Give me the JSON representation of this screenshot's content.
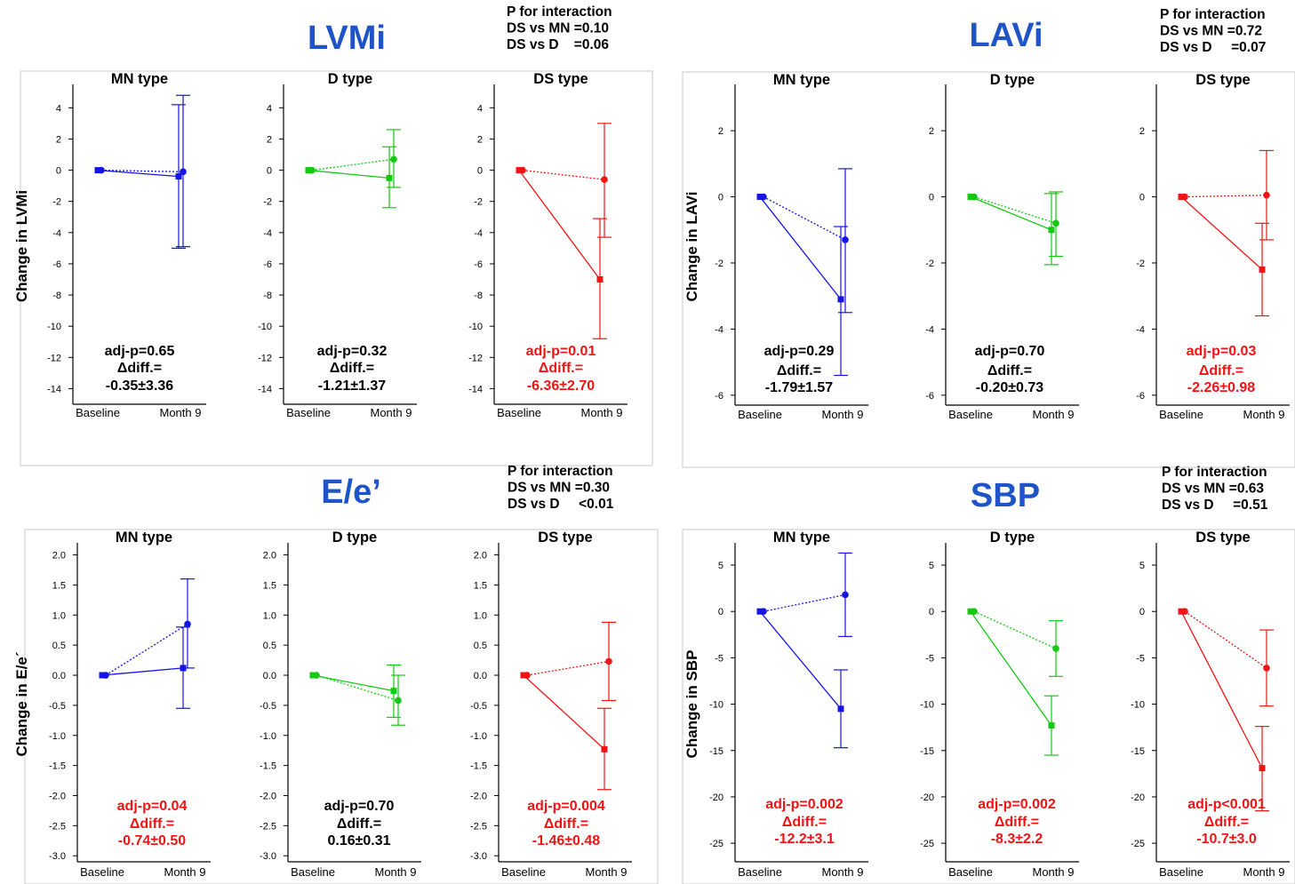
{
  "colors": {
    "MN": "#1414e6",
    "D": "#14c814",
    "DS": "#f01414",
    "title": "#1f54c8",
    "text": "#000000",
    "sig": "#f01414"
  },
  "chart_data": [
    {
      "type": "line",
      "title": "LVMi",
      "ylabel": "Change in LVMi",
      "interaction": {
        "heading": "P for interaction",
        "line1": "DS vs MN =0.10",
        "line2": "DS vs D    =0.06"
      },
      "categories": [
        "Baseline",
        "Month 9"
      ],
      "ylim": [
        -15,
        5.5
      ],
      "yticks": [
        4,
        2,
        0,
        -2,
        -4,
        -6,
        -8,
        -10,
        -12,
        -14
      ],
      "yticklabels": [
        "4",
        "2",
        "0",
        "-2",
        "-4",
        "-6",
        "-8",
        "-10",
        "-12",
        "-14"
      ],
      "panels": [
        {
          "name": "MN type",
          "color": "#1414e6",
          "solid_end": -0.4,
          "solid_err": [
            -5.0,
            4.2
          ],
          "dotted_end": -0.1,
          "dotted_err": [
            -4.9,
            4.8
          ],
          "stats": {
            "p": "adj-p=0.65",
            "diff_label": "Δdiff.=",
            "diff": "-0.35±3.36"
          },
          "significant": false
        },
        {
          "name": "D type",
          "color": "#14c814",
          "solid_end": -0.5,
          "solid_err": [
            -2.4,
            1.5
          ],
          "dotted_end": 0.7,
          "dotted_err": [
            -1.1,
            2.6
          ],
          "stats": {
            "p": "adj-p=0.32",
            "diff_label": "Δdiff.=",
            "diff": "-1.21±1.37"
          },
          "significant": false
        },
        {
          "name": "DS type",
          "color": "#f01414",
          "solid_end": -7.0,
          "solid_err": [
            -10.8,
            -3.1
          ],
          "dotted_end": -0.6,
          "dotted_err": [
            -4.3,
            3.0
          ],
          "stats": {
            "p": "adj-p=0.01",
            "diff_label": "Δdiff.=",
            "diff": "-6.36±2.70"
          },
          "significant": true
        }
      ]
    },
    {
      "type": "line",
      "title": "LAVi",
      "ylabel": "Change in LAVi",
      "interaction": {
        "heading": "P for interaction",
        "line1": "DS vs MN =0.72",
        "line2": "DS vs D     =0.07"
      },
      "categories": [
        "Baseline",
        "Month 9"
      ],
      "ylim": [
        -6.3,
        3.4
      ],
      "yticks": [
        2,
        0,
        -2,
        -4,
        -6
      ],
      "yticklabels": [
        "2",
        "0",
        "-2",
        "-4",
        "-6"
      ],
      "panels": [
        {
          "name": "MN type",
          "color": "#1414e6",
          "solid_end": -3.1,
          "solid_err": [
            -5.4,
            -0.9
          ],
          "dotted_end": -1.3,
          "dotted_err": [
            -3.5,
            0.85
          ],
          "stats": {
            "p": "adj-p=0.29",
            "diff_label": "Δdiff.=",
            "diff": "-1.79±1.57"
          },
          "significant": false
        },
        {
          "name": "D type",
          "color": "#14c814",
          "solid_end": -1.0,
          "solid_err": [
            -2.05,
            0.1
          ],
          "dotted_end": -0.8,
          "dotted_err": [
            -1.8,
            0.15
          ],
          "stats": {
            "p": "adj-p=0.70",
            "diff_label": "Δdiff.=",
            "diff": "-0.20±0.73"
          },
          "significant": false
        },
        {
          "name": "DS type",
          "color": "#f01414",
          "solid_end": -2.2,
          "solid_err": [
            -3.6,
            -0.8
          ],
          "dotted_end": 0.05,
          "dotted_err": [
            -1.3,
            1.4
          ],
          "stats": {
            "p": "adj-p=0.03",
            "diff_label": "Δdiff.=",
            "diff": "-2.26±0.98"
          },
          "significant": true
        }
      ]
    },
    {
      "type": "line",
      "title": "E/e’",
      "ylabel": "Change in E/e´",
      "interaction": {
        "heading": "P for interaction",
        "line1": "DS vs MN =0.30",
        "line2": "DS vs D     <0.01"
      },
      "categories": [
        "Baseline",
        "Month 9"
      ],
      "ylim": [
        -3.1,
        2.2
      ],
      "yticks": [
        2.0,
        1.5,
        1.0,
        0.5,
        0.0,
        -0.5,
        -1.0,
        -1.5,
        -2.0,
        -2.5,
        -3.0
      ],
      "yticklabels": [
        "2.0",
        "1.5",
        "1.0",
        "0.5",
        "0.0",
        "-0.5",
        "-1.0",
        "-1.5",
        "-2.0",
        "-2.5",
        "-3.0"
      ],
      "panels": [
        {
          "name": "MN type",
          "color": "#1414e6",
          "solid_end": 0.12,
          "solid_err": [
            -0.55,
            0.8
          ],
          "dotted_end": 0.85,
          "dotted_err": [
            0.12,
            1.6
          ],
          "stats": {
            "p": "adj-p=0.04",
            "diff_label": "Δdiff.=",
            "diff": "-0.74±0.50"
          },
          "significant": true
        },
        {
          "name": "D type",
          "color": "#14c814",
          "solid_end": -0.26,
          "solid_err": [
            -0.7,
            0.17
          ],
          "dotted_end": -0.42,
          "dotted_err": [
            -0.83,
            0.0
          ],
          "stats": {
            "p": "adj-p=0.70",
            "diff_label": "Δdiff.=",
            "diff": "0.16±0.31"
          },
          "significant": false
        },
        {
          "name": "DS type",
          "color": "#f01414",
          "solid_end": -1.23,
          "solid_err": [
            -1.9,
            -0.55
          ],
          "dotted_end": 0.23,
          "dotted_err": [
            -0.42,
            0.88
          ],
          "stats": {
            "p": "adj-p=0.004",
            "diff_label": "Δdiff.=",
            "diff": "-1.46±0.48"
          },
          "significant": true
        }
      ]
    },
    {
      "type": "line",
      "title": "SBP",
      "ylabel": "Change in SBP",
      "interaction": {
        "heading": "P for interaction",
        "line1": "DS vs MN =0.63",
        "line2": "DS vs D     =0.51"
      },
      "categories": [
        "Baseline",
        "Month 9"
      ],
      "ylim": [
        -27,
        7.4
      ],
      "yticks": [
        5,
        0,
        -5,
        -10,
        -15,
        -20,
        -25
      ],
      "yticklabels": [
        "5",
        "0",
        "-5",
        "-10",
        "-15",
        "-20",
        "-25"
      ],
      "panels": [
        {
          "name": "MN type",
          "color": "#1414e6",
          "solid_end": -10.5,
          "solid_err": [
            -14.7,
            -6.3
          ],
          "dotted_end": 1.8,
          "dotted_err": [
            -2.7,
            6.3
          ],
          "stats": {
            "p": "adj-p=0.002",
            "diff_label": "Δdiff.=",
            "diff": "-12.2±3.1"
          },
          "significant": true
        },
        {
          "name": "D type",
          "color": "#14c814",
          "solid_end": -12.3,
          "solid_err": [
            -15.5,
            -9.1
          ],
          "dotted_end": -4.0,
          "dotted_err": [
            -7.0,
            -1.0
          ],
          "stats": {
            "p": "adj-p=0.002",
            "diff_label": "Δdiff.=",
            "diff": "-8.3±2.2"
          },
          "significant": true
        },
        {
          "name": "DS type",
          "color": "#f01414",
          "solid_end": -16.9,
          "solid_err": [
            -21.5,
            -12.4
          ],
          "dotted_end": -6.1,
          "dotted_err": [
            -10.2,
            -2.0
          ],
          "stats": {
            "p": "adj-p<0.001",
            "diff_label": "Δdiff.=",
            "diff": "-10.7±3.0"
          },
          "significant": true
        }
      ]
    }
  ]
}
